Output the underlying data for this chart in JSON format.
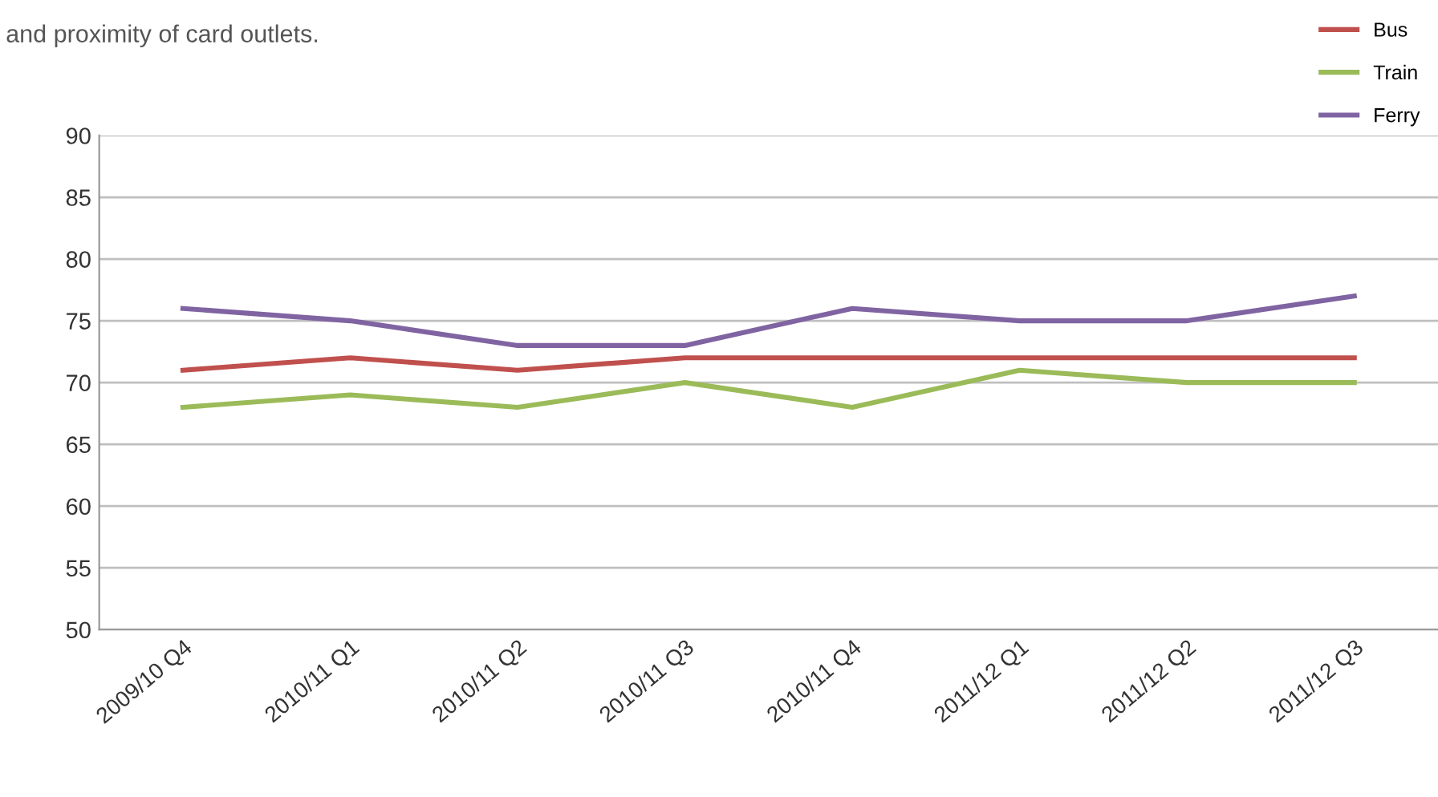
{
  "chart_data": {
    "type": "line",
    "subtitle": "and proximity of card outlets.",
    "categories": [
      "2009/10 Q4",
      "2010/11 Q1",
      "2010/11 Q2",
      "2010/11 Q3",
      "2010/11 Q4",
      "2011/12 Q1",
      "2011/12 Q2",
      "2011/12 Q3"
    ],
    "series": [
      {
        "name": "Bus",
        "color": "#c0504d",
        "values": [
          71,
          72,
          71,
          72,
          72,
          72,
          72,
          72
        ]
      },
      {
        "name": "Train",
        "color": "#9bbb59",
        "values": [
          68,
          69,
          68,
          70,
          68,
          71,
          70,
          70
        ]
      },
      {
        "name": "Ferry",
        "color": "#8064a2",
        "values": [
          76,
          75,
          73,
          73,
          76,
          75,
          75,
          77
        ]
      }
    ],
    "ylim": [
      50,
      90
    ],
    "yticks": [
      50,
      55,
      60,
      65,
      70,
      75,
      80,
      85,
      90
    ],
    "grid": "y",
    "legend": "top right",
    "marker": "none",
    "line_style": "solid"
  }
}
